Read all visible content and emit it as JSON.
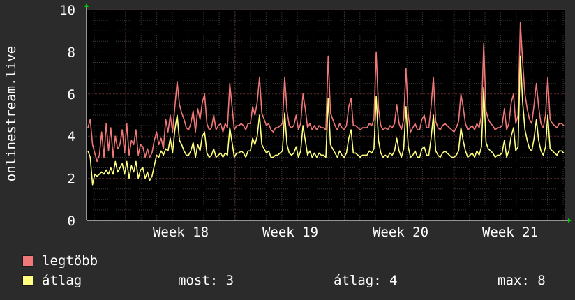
{
  "chart_data": {
    "type": "line",
    "ylabel": "onlinestream.live",
    "ylim": [
      0,
      10
    ],
    "yticks": [
      0,
      2,
      4,
      6,
      8,
      10
    ],
    "x_ticks": [
      "Week 18",
      "Week 19",
      "Week 20",
      "Week 21"
    ],
    "grid": true,
    "colors": {
      "background": "#2b2b2b",
      "plot": "#000000",
      "major_grid": "#5a2a2a",
      "minor_grid": "#3a3a3a",
      "axis": "#ffffff",
      "arrow": "#00cc00"
    },
    "series": [
      {
        "name": "legtöbb",
        "color": "#f07878",
        "values": [
          4.4,
          4.8,
          3.6,
          3.2,
          2.8,
          3.1,
          4.2,
          3.0,
          4.6,
          3.3,
          4.4,
          3.0,
          4.0,
          3.4,
          3.6,
          4.3,
          3.2,
          4.6,
          3.1,
          3.8,
          3.6,
          4.3,
          3.1,
          3.6,
          3.5,
          3.0,
          3.4,
          3.0,
          3.2,
          3.8,
          4.2,
          3.6,
          3.9,
          3.4,
          4.8,
          4.2,
          5.0,
          4.2,
          5.4,
          6.6,
          5.5,
          5.1,
          4.8,
          4.4,
          4.3,
          4.6,
          5.2,
          4.2,
          5.3,
          4.8,
          5.6,
          6.0,
          4.6,
          4.3,
          4.4,
          5.0,
          4.3,
          4.5,
          4.6,
          4.2,
          4.6,
          4.4,
          6.5,
          5.4,
          4.3,
          4.5,
          4.5,
          4.6,
          4.5,
          4.3,
          4.6,
          4.6,
          5.4,
          5.0,
          5.6,
          6.8,
          5.1,
          4.8,
          4.5,
          4.6,
          4.3,
          4.2,
          4.4,
          4.4,
          4.5,
          4.6,
          6.8,
          5.2,
          4.5,
          4.4,
          4.5,
          5.0,
          4.3,
          4.6,
          6.0,
          5.3,
          4.4,
          4.6,
          4.3,
          4.5,
          4.3,
          4.5,
          4.4,
          4.4,
          4.3,
          7.8,
          5.1,
          4.8,
          4.5,
          4.3,
          4.6,
          4.4,
          4.3,
          4.5,
          5.4,
          5.8,
          4.5,
          4.5,
          4.4,
          4.3,
          4.4,
          4.4,
          4.4,
          4.6,
          4.5,
          4.8,
          8.0,
          5.3,
          4.5,
          4.3,
          4.4,
          4.3,
          4.5,
          4.4,
          4.6,
          5.5,
          4.6,
          4.3,
          4.8,
          7.2,
          5.0,
          4.2,
          4.4,
          4.6,
          4.3,
          4.3,
          4.8,
          5.0,
          4.4,
          4.4,
          5.4,
          6.8,
          4.7,
          4.4,
          4.3,
          4.5,
          4.6,
          4.5,
          4.4,
          4.3,
          4.2,
          4.4,
          4.7,
          6.0,
          5.4,
          4.6,
          4.3,
          4.4,
          4.5,
          4.3,
          4.6,
          4.4,
          5.0,
          8.4,
          5.2,
          4.8,
          4.6,
          4.5,
          4.3,
          4.4,
          4.4,
          4.5,
          5.3,
          4.3,
          4.6,
          5.6,
          6.0,
          4.6,
          5.0,
          9.4,
          7.5,
          6.0,
          5.3,
          4.8,
          4.6,
          5.5,
          6.5,
          5.4,
          4.6,
          4.4,
          5.0,
          6.8,
          4.8,
          4.6,
          4.5,
          4.4,
          4.6,
          4.6,
          4.5
        ]
      },
      {
        "name": "átlag",
        "color": "#ffff80",
        "values": [
          3.3,
          3.0,
          1.7,
          2.2,
          2.1,
          2.2,
          2.3,
          2.2,
          2.4,
          2.2,
          2.5,
          2.2,
          2.8,
          2.3,
          2.5,
          2.7,
          2.2,
          2.8,
          2.0,
          2.6,
          2.3,
          2.8,
          2.0,
          2.4,
          2.5,
          2.0,
          2.3,
          1.9,
          2.1,
          2.6,
          3.1,
          3.0,
          3.3,
          3.1,
          3.4,
          3.3,
          3.9,
          3.2,
          4.3,
          5.0,
          3.8,
          3.6,
          3.3,
          3.1,
          3.1,
          3.3,
          3.7,
          3.0,
          3.6,
          3.3,
          4.0,
          4.2,
          3.2,
          3.0,
          3.1,
          3.4,
          3.0,
          3.1,
          3.2,
          3.0,
          3.2,
          3.1,
          4.4,
          3.7,
          3.0,
          3.2,
          3.2,
          3.3,
          3.2,
          3.0,
          3.3,
          3.3,
          3.9,
          3.6,
          4.0,
          5.0,
          3.6,
          3.4,
          3.2,
          3.3,
          3.0,
          3.0,
          3.1,
          3.1,
          3.2,
          3.3,
          5.1,
          3.6,
          3.2,
          3.1,
          3.2,
          3.5,
          3.0,
          3.3,
          4.5,
          3.8,
          3.1,
          3.3,
          3.0,
          3.2,
          3.0,
          3.2,
          3.1,
          3.1,
          3.0,
          5.8,
          3.6,
          3.4,
          3.2,
          3.0,
          3.3,
          3.1,
          3.0,
          3.2,
          3.9,
          4.3,
          3.2,
          3.2,
          3.1,
          3.0,
          3.1,
          3.1,
          3.1,
          3.3,
          3.2,
          3.4,
          5.9,
          3.8,
          3.2,
          3.0,
          3.1,
          3.0,
          3.2,
          3.1,
          3.3,
          3.9,
          3.3,
          3.0,
          3.4,
          5.4,
          3.5,
          3.0,
          3.1,
          3.3,
          3.0,
          3.0,
          3.4,
          3.5,
          3.1,
          3.1,
          3.9,
          5.0,
          3.3,
          3.1,
          3.0,
          3.2,
          3.3,
          3.2,
          3.1,
          3.0,
          3.0,
          3.1,
          3.3,
          4.4,
          3.8,
          3.3,
          3.0,
          3.1,
          3.2,
          3.0,
          3.3,
          3.1,
          3.5,
          6.3,
          3.7,
          3.4,
          3.3,
          3.2,
          3.0,
          3.1,
          3.1,
          3.2,
          3.8,
          3.0,
          3.3,
          4.0,
          4.4,
          3.3,
          3.5,
          7.8,
          5.6,
          4.3,
          3.8,
          3.4,
          3.3,
          3.9,
          4.8,
          3.8,
          3.3,
          3.1,
          3.5,
          5.0,
          3.4,
          3.3,
          3.2,
          3.1,
          3.3,
          3.3,
          3.2
        ]
      }
    ]
  },
  "legend": [
    {
      "label": "legtöbb",
      "color": "#f07878"
    },
    {
      "label": "átlag",
      "color": "#ffff80"
    }
  ],
  "stats": {
    "most": "most: 3",
    "atlag": "átlag: 4",
    "max": "max: 8"
  }
}
